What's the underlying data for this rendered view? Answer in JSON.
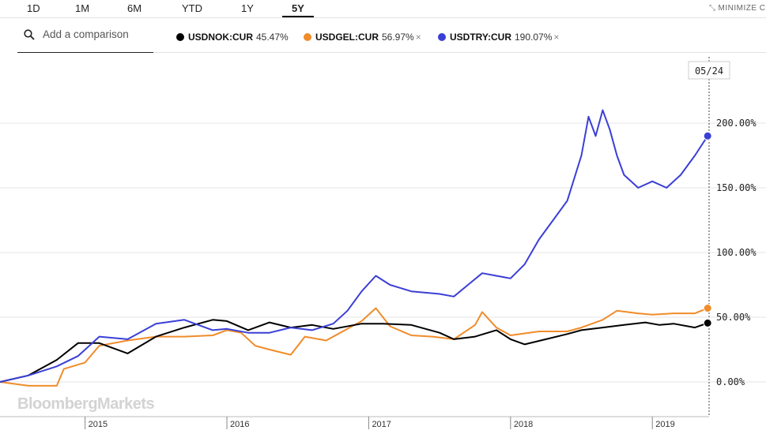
{
  "tabs": [
    {
      "label": "1D",
      "active": false
    },
    {
      "label": "1M",
      "active": false
    },
    {
      "label": "6M",
      "active": false
    },
    {
      "label": "YTD",
      "active": false
    },
    {
      "label": "1Y",
      "active": false
    },
    {
      "label": "5Y",
      "active": true
    }
  ],
  "minimize_label": "MINIMIZE C",
  "search": {
    "placeholder": "Add a comparison"
  },
  "legend": [
    {
      "symbol": "USDNOK:CUR",
      "pct": "45.47%",
      "color": "#000000",
      "closable": false
    },
    {
      "symbol": "USDGEL:CUR",
      "pct": "56.97%",
      "color": "#f08c2a",
      "closable": true
    },
    {
      "symbol": "USDTRY:CUR",
      "pct": "190.07%",
      "color": "#3a3fd6",
      "closable": true
    }
  ],
  "close_symbol": "×",
  "watermark": "BloombergMarkets",
  "date_badge": "05/24",
  "chart_data": {
    "type": "line",
    "y_ticks": [
      "0.00%",
      "50.00%",
      "100.00%",
      "150.00%",
      "200.00%"
    ],
    "y_values": [
      0,
      50,
      100,
      150,
      200
    ],
    "ylim": [
      -25,
      240
    ],
    "x_ticks": [
      "2015",
      "2016",
      "2017",
      "2018",
      "2019"
    ],
    "x_tick_years": [
      2015.0,
      2016.0,
      2017.0,
      2018.0,
      2019.0
    ],
    "xlim": [
      2014.4,
      2019.4
    ],
    "grid": true,
    "series": [
      {
        "name": "USDNOK:CUR",
        "color": "#000000",
        "last": 45.47,
        "x": [
          2014.4,
          2014.6,
          2014.8,
          2014.95,
          2015.1,
          2015.3,
          2015.5,
          2015.7,
          2015.9,
          2016.0,
          2016.15,
          2016.3,
          2016.45,
          2016.6,
          2016.75,
          2016.95,
          2017.1,
          2017.3,
          2017.5,
          2017.6,
          2017.75,
          2017.9,
          2018.0,
          2018.1,
          2018.25,
          2018.4,
          2018.5,
          2018.65,
          2018.8,
          2018.95,
          2019.05,
          2019.15,
          2019.3,
          2019.39
        ],
        "y": [
          0,
          5,
          17,
          30,
          30,
          22,
          35,
          42,
          48,
          47,
          40,
          46,
          42,
          44,
          41,
          45,
          45,
          44,
          38,
          33,
          35,
          40,
          33,
          29,
          33,
          37,
          40,
          42,
          44,
          46,
          44,
          45,
          42,
          45.5
        ]
      },
      {
        "name": "USDGEL:CUR",
        "color": "#f08c2a",
        "last": 56.97,
        "x": [
          2014.4,
          2014.6,
          2014.8,
          2014.85,
          2015.0,
          2015.1,
          2015.3,
          2015.5,
          2015.7,
          2015.9,
          2016.0,
          2016.1,
          2016.2,
          2016.3,
          2016.45,
          2016.55,
          2016.7,
          2016.9,
          2016.95,
          2017.05,
          2017.15,
          2017.3,
          2017.45,
          2017.6,
          2017.75,
          2017.8,
          2017.9,
          2018.0,
          2018.2,
          2018.4,
          2018.5,
          2018.65,
          2018.75,
          2018.9,
          2019.0,
          2019.15,
          2019.3,
          2019.39
        ],
        "y": [
          0,
          -3,
          -3,
          10,
          15,
          28,
          32,
          35,
          35,
          36,
          40,
          38,
          28,
          25,
          21,
          35,
          32,
          44,
          47,
          57,
          43,
          36,
          35,
          33,
          44,
          54,
          42,
          36,
          39,
          39,
          42,
          48,
          55,
          53,
          52,
          53,
          53,
          57
        ]
      },
      {
        "name": "USDTRY:CUR",
        "color": "#3a3fd6",
        "last": 190.07,
        "x": [
          2014.4,
          2014.6,
          2014.8,
          2014.95,
          2015.1,
          2015.3,
          2015.5,
          2015.7,
          2015.9,
          2016.0,
          2016.15,
          2016.3,
          2016.45,
          2016.6,
          2016.75,
          2016.85,
          2016.95,
          2017.05,
          2017.15,
          2017.3,
          2017.5,
          2017.6,
          2017.7,
          2017.8,
          2017.9,
          2018.0,
          2018.1,
          2018.2,
          2018.3,
          2018.4,
          2018.5,
          2018.55,
          2018.6,
          2018.65,
          2018.7,
          2018.75,
          2018.8,
          2018.9,
          2019.0,
          2019.1,
          2019.2,
          2019.3,
          2019.39
        ],
        "y": [
          0,
          5,
          12,
          20,
          35,
          33,
          45,
          48,
          40,
          41,
          38,
          38,
          42,
          40,
          45,
          55,
          70,
          82,
          75,
          70,
          68,
          66,
          75,
          84,
          82,
          80,
          91,
          110,
          125,
          140,
          175,
          205,
          190,
          210,
          195,
          175,
          160,
          150,
          155,
          150,
          160,
          175,
          190.07
        ]
      }
    ]
  }
}
